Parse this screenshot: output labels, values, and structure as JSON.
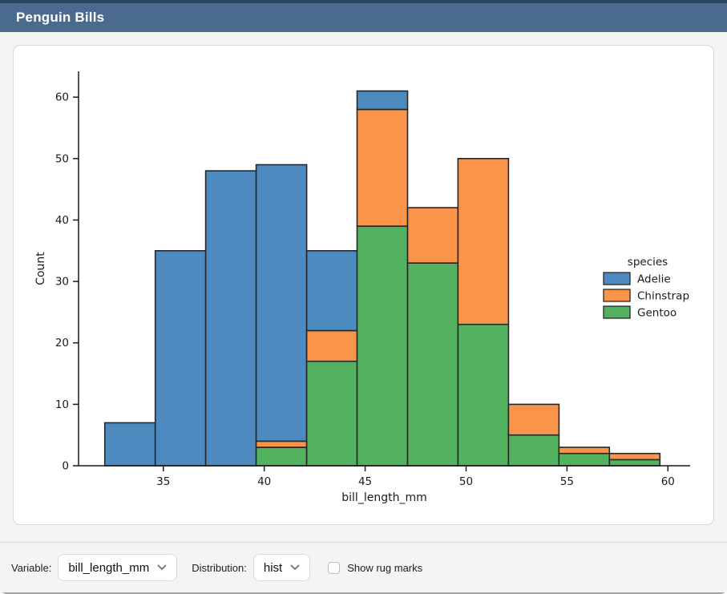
{
  "window": {
    "title": "Penguin Bills"
  },
  "theme": {
    "titlebar_bg": "#4a6a8e",
    "titlebar_top_strip": "#2b445e",
    "page_bg": "#f4f4f3",
    "card_bg": "#ffffff"
  },
  "chart_data": {
    "type": "bar",
    "subtype": "stacked-histogram",
    "title": "",
    "xlabel": "bill_length_mm",
    "ylabel": "Count",
    "bin_edges": [
      32.1,
      34.6,
      37.1,
      39.6,
      42.1,
      44.6,
      47.1,
      49.6,
      52.1,
      54.6,
      57.1,
      59.6
    ],
    "series": [
      {
        "name": "Adelie",
        "color": "#4d8ac0",
        "values": [
          7,
          35,
          48,
          45,
          13,
          3,
          0,
          0,
          0,
          0,
          0
        ]
      },
      {
        "name": "Chinstrap",
        "color": "#f9944a",
        "values": [
          0,
          0,
          0,
          1,
          5,
          19,
          9,
          27,
          5,
          1,
          1
        ]
      },
      {
        "name": "Gentoo",
        "color": "#52b25f",
        "values": [
          0,
          0,
          0,
          3,
          17,
          39,
          33,
          23,
          5,
          2,
          1
        ]
      }
    ],
    "stack_order_bottom_to_top": [
      "Gentoo",
      "Chinstrap",
      "Adelie"
    ],
    "bin_totals": [
      7,
      35,
      48,
      49,
      35,
      61,
      42,
      50,
      10,
      3,
      2
    ],
    "xticks": [
      35,
      40,
      45,
      50,
      55,
      60
    ],
    "yticks": [
      0,
      10,
      20,
      30,
      40,
      50,
      60
    ],
    "xlim": [
      30.8,
      61.1
    ],
    "ylim": [
      0,
      64.2
    ],
    "grid": false,
    "bar_edge_color": "#262626",
    "axis_color": "#1a1a1a",
    "legend": {
      "title": "species",
      "entries": [
        "Adelie",
        "Chinstrap",
        "Gentoo"
      ],
      "position": "right"
    }
  },
  "controls": {
    "variable_label": "Variable:",
    "variable_value": "bill_length_mm",
    "distribution_label": "Distribution:",
    "distribution_value": "hist",
    "rug_label": "Show rug marks",
    "rug_checked": false
  }
}
